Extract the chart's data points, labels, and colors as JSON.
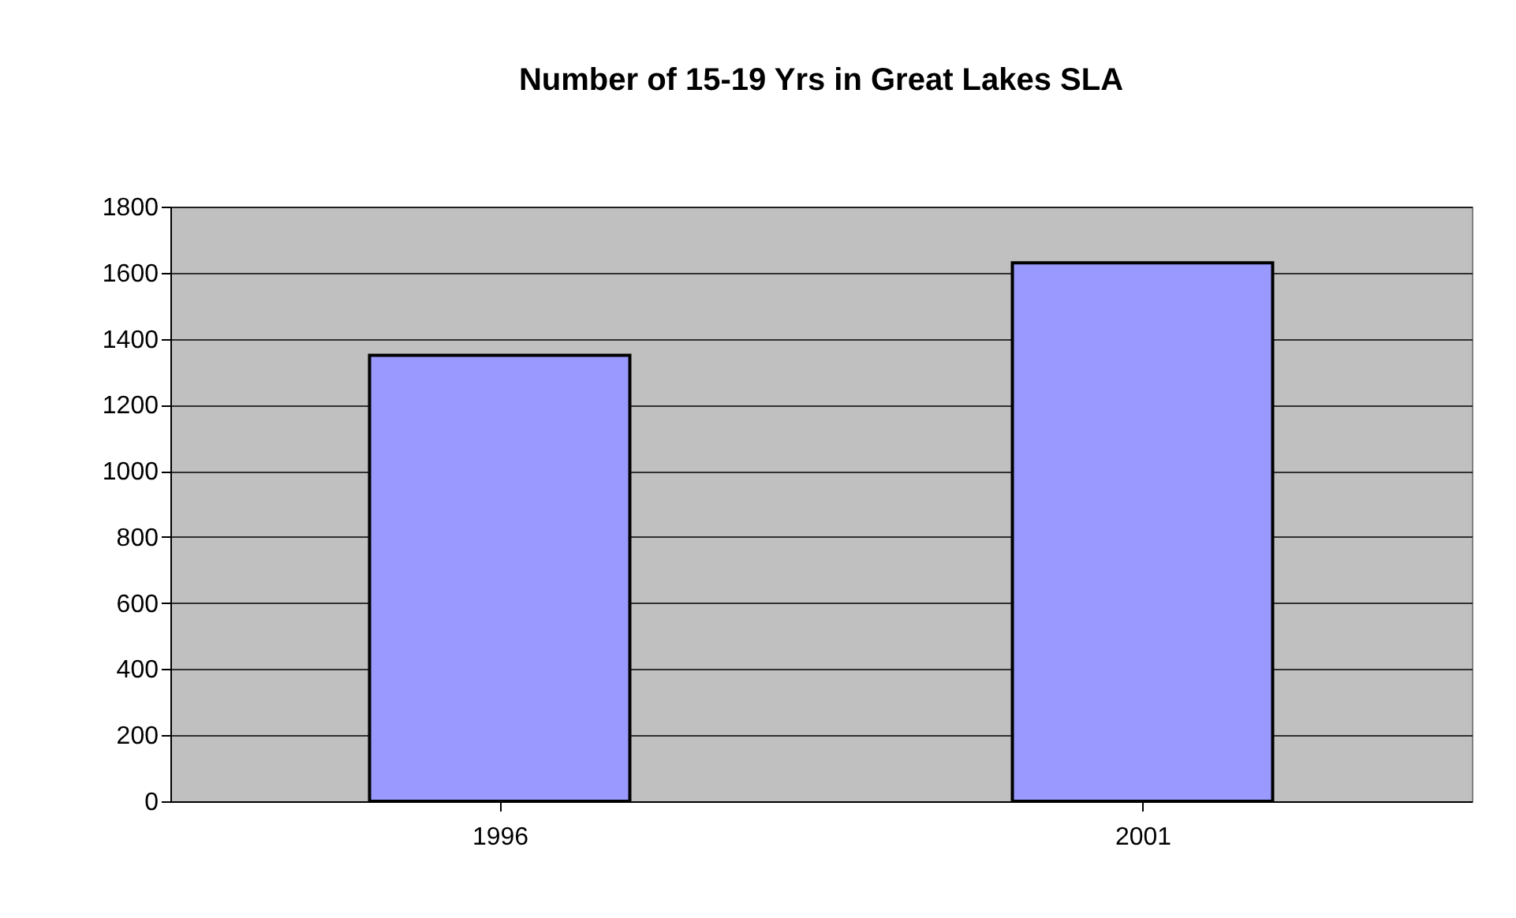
{
  "chart_data": {
    "type": "bar",
    "title": "Number of 15-19 Yrs in Great Lakes SLA",
    "categories": [
      "1996",
      "2001"
    ],
    "values": [
      1350,
      1630
    ],
    "color": "#9999ff",
    "ylim": [
      0,
      1800
    ],
    "yticks": [
      0,
      200,
      400,
      600,
      800,
      1000,
      1200,
      1400,
      1600,
      1800
    ],
    "grid": "y"
  }
}
